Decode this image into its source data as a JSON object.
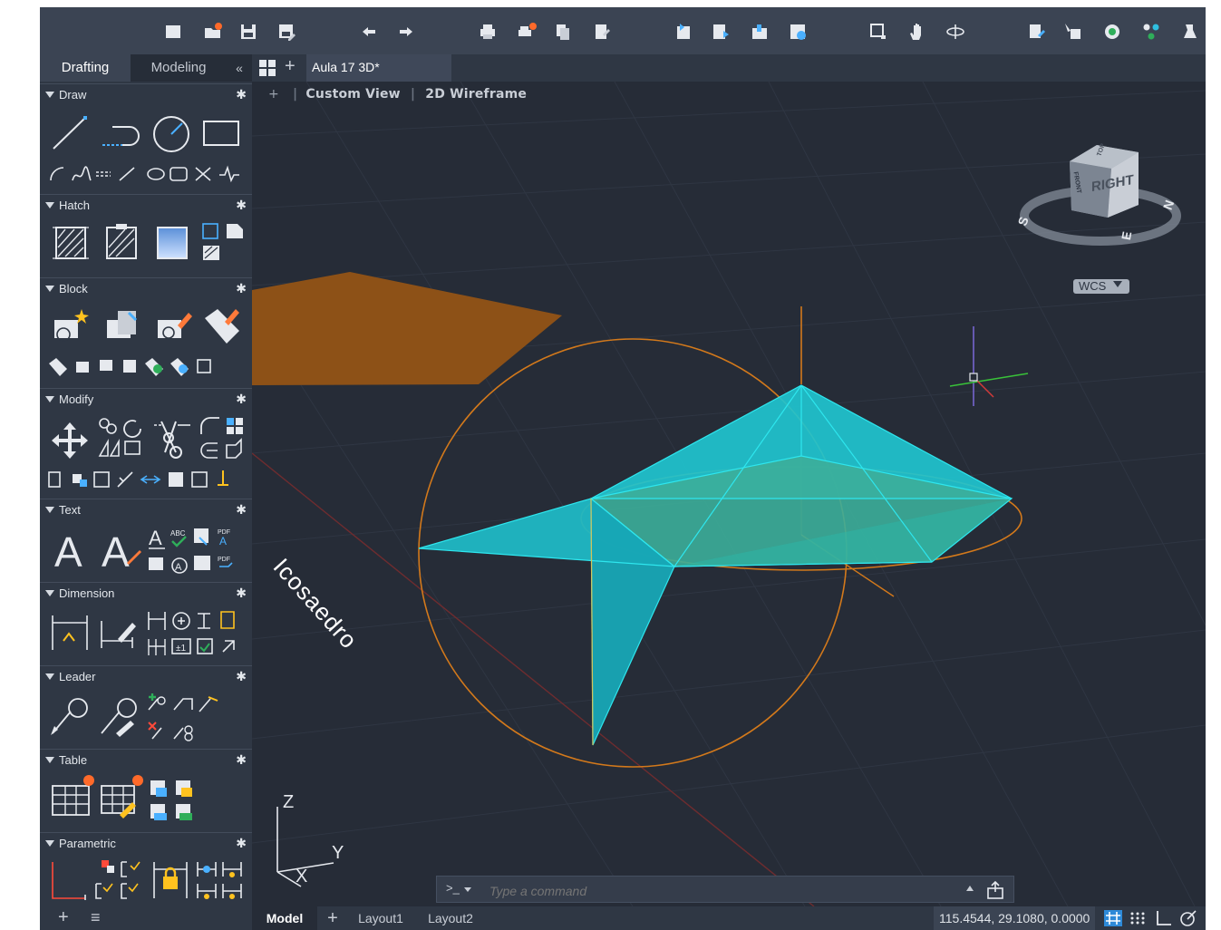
{
  "palette": {
    "tabs": [
      "Drafting",
      "Modeling"
    ],
    "collapse_glyph": "«",
    "sections": [
      {
        "title": "Draw"
      },
      {
        "title": "Hatch"
      },
      {
        "title": "Block"
      },
      {
        "title": "Modify"
      },
      {
        "title": "Text"
      },
      {
        "title": "Dimension"
      },
      {
        "title": "Leader"
      },
      {
        "title": "Table"
      },
      {
        "title": "Parametric"
      }
    ],
    "footer_add": "+",
    "footer_menu": "≡"
  },
  "doc_tabs": {
    "active": "Aula 17 3D*",
    "add": "+"
  },
  "viewport": {
    "plus": "+",
    "view_name": "Custom View",
    "visual_style": "2D Wireframe",
    "object_label": "Icosaedro",
    "viewcube_face": "RIGHT",
    "viewcube_top": "TOP",
    "viewcube_front": "FRONT",
    "compass": {
      "s": "S",
      "n": "N",
      "e": "E"
    },
    "wcs_label": "WCS",
    "ucs_axes": {
      "z": "Z",
      "y": "Y",
      "x": "X"
    }
  },
  "command": {
    "prompt": ">_",
    "placeholder": "Type a command"
  },
  "status": {
    "tabs": [
      "Model",
      "Layout1",
      "Layout2"
    ],
    "add": "+",
    "coordinates": "115.4544, 29.1080, 0.0000"
  },
  "colors": {
    "orange": "#d3791b",
    "cyan": "#1ad2dc",
    "panel": "#2f3744",
    "viewport": "#262c37"
  }
}
